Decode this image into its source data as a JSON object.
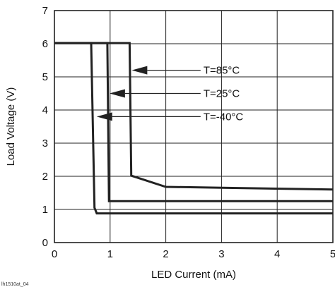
{
  "chart_data": {
    "type": "line",
    "xlabel": "LED Current (mA)",
    "ylabel": "Load Voltage (V)",
    "xlim": [
      0,
      5
    ],
    "ylim": [
      0,
      7
    ],
    "x_ticks": [
      0,
      1,
      2,
      3,
      4,
      5
    ],
    "y_ticks": [
      0,
      1,
      2,
      3,
      4,
      5,
      6,
      7
    ],
    "grid": true,
    "figure_id": "lh1510at_04",
    "series": [
      {
        "name": "T=85°C",
        "x": [
          0,
          1.35,
          1.38,
          2.0,
          5.0
        ],
        "y": [
          6.02,
          6.02,
          2.02,
          1.68,
          1.6
        ]
      },
      {
        "name": "T=25°C",
        "x": [
          0,
          0.95,
          0.98,
          5.0
        ],
        "y": [
          6.02,
          6.02,
          1.25,
          1.25
        ]
      },
      {
        "name": "T=-40°C",
        "x": [
          0,
          0.66,
          0.72,
          0.76,
          5.0
        ],
        "y": [
          6.02,
          6.02,
          1.05,
          0.88,
          0.88
        ]
      }
    ],
    "annotations": [
      {
        "text": "T=85°C",
        "arrow_to": [
          1.35,
          5.2
        ],
        "text_at": [
          2.65,
          5.2
        ]
      },
      {
        "text": "T=25°C",
        "arrow_to": [
          0.95,
          4.5
        ],
        "text_at": [
          2.65,
          4.5
        ]
      },
      {
        "text": "T=-40°C",
        "arrow_to": [
          0.72,
          3.8
        ],
        "text_at": [
          2.65,
          3.8
        ]
      }
    ],
    "colors": {
      "line": "#222222",
      "grid": "#222222",
      "text": "#111111"
    }
  }
}
